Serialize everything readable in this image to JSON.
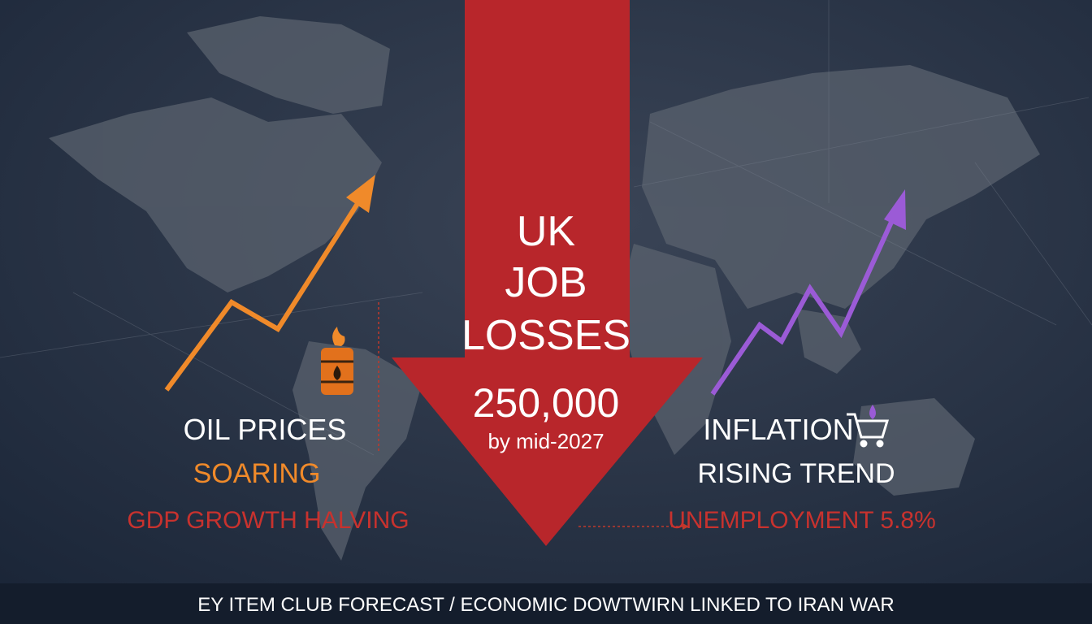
{
  "headline": {
    "lines": [
      "UK",
      "JOB",
      "LOSSES"
    ],
    "figure": "250,000",
    "timeframe": "by mid-2027"
  },
  "left_panel": {
    "label": "OIL PRICES",
    "status": "SOARING",
    "note": "GDP GROWTH HALVING"
  },
  "right_panel": {
    "label": "INFLATION",
    "status": "RISING TREND",
    "note": "UNEMPLOYMENT 5.8%"
  },
  "footer": "EY ITEM CLUB FORECAST / ECONOMIC DOWTWIRN LINKED TO IRAN WAR"
}
